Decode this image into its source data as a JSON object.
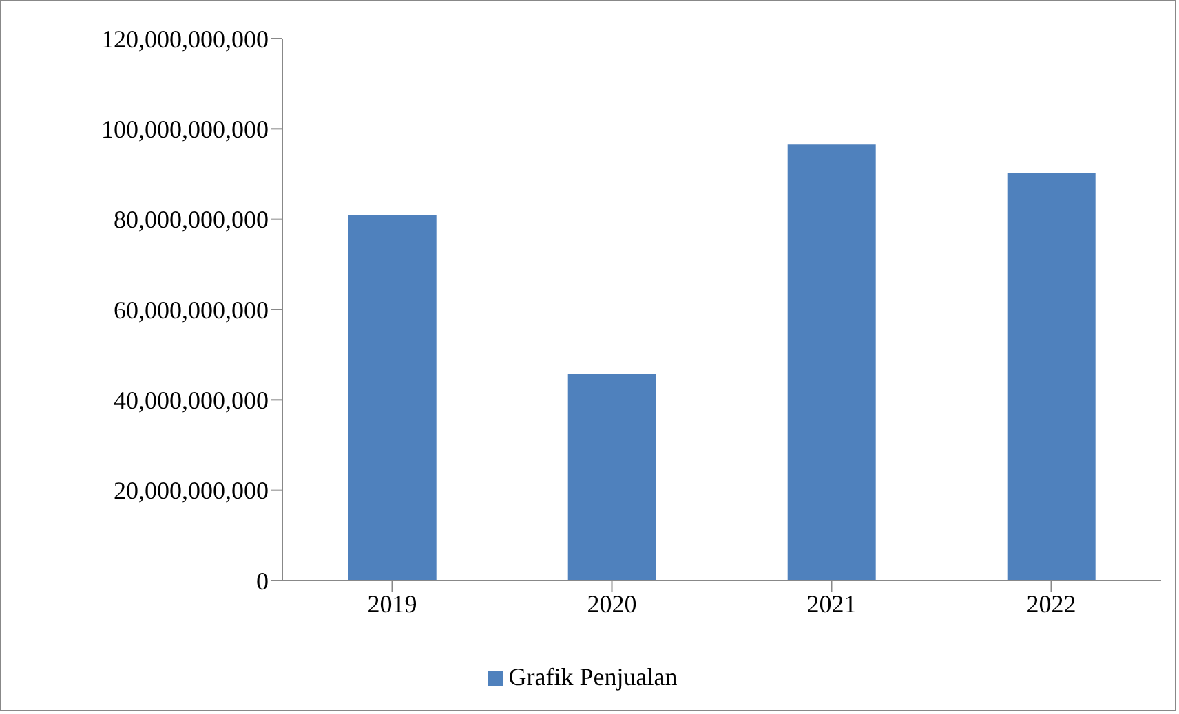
{
  "chart_data": {
    "type": "bar",
    "categories": [
      "2019",
      "2020",
      "2021",
      "2022"
    ],
    "series": [
      {
        "name": "Grafik Penjualan",
        "color": "#4f81bd",
        "values": [
          80900000000,
          45700000000,
          96500000000,
          90300000000
        ]
      }
    ],
    "ylim": [
      0,
      120000000000
    ],
    "yticks": [
      0,
      {
        "value": 20000000000,
        "label": "20,000,000,000"
      },
      {
        "value": 40000000000,
        "label": "40,000,000,000"
      },
      {
        "value": 60000000000,
        "label": "60,000,000,000"
      },
      {
        "value": 80000000000,
        "label": "80,000,000,000"
      },
      {
        "value": 100000000000,
        "label": "100,000,000,000"
      },
      {
        "value": 120000000000,
        "label": "120,000,000,000"
      }
    ],
    "grid": false,
    "legend": "bottom"
  }
}
